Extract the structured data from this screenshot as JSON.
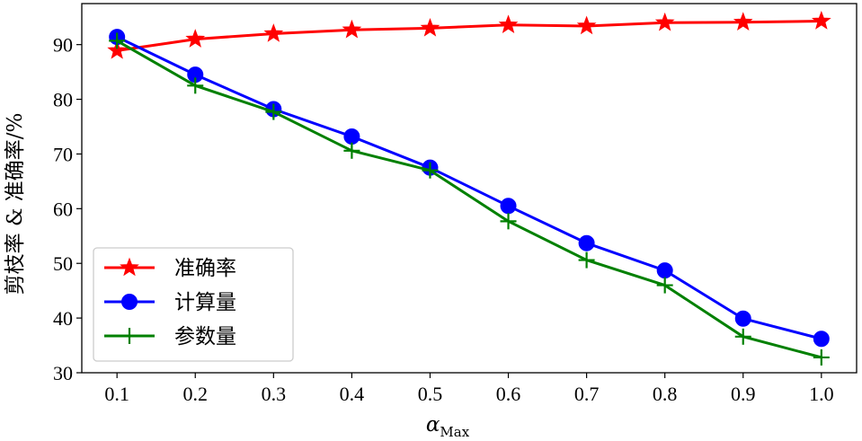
{
  "chart_data": {
    "type": "line",
    "x": [
      0.1,
      0.2,
      0.3,
      0.4,
      0.5,
      0.6,
      0.7,
      0.8,
      0.9,
      1.0
    ],
    "x_tick_labels": [
      "0.1",
      "0.2",
      "0.3",
      "0.4",
      "0.5",
      "0.6",
      "0.7",
      "0.8",
      "0.9",
      "1.0"
    ],
    "y_ticks": [
      30,
      40,
      50,
      60,
      70,
      80,
      90
    ],
    "xlim": [
      0.055,
      1.045
    ],
    "ylim": [
      30,
      97.5
    ],
    "xlabel": {
      "symbol": "α",
      "subscript": "Max"
    },
    "ylabel": "剪枝率 & 准确率/%",
    "grid": false,
    "legend_position": "lower-left",
    "series": [
      {
        "name": "准确率",
        "color": "#ff0000",
        "marker": "star",
        "values": [
          88.9,
          91.0,
          92.0,
          92.7,
          93.0,
          93.6,
          93.4,
          94.0,
          94.1,
          94.3
        ]
      },
      {
        "name": "计算量",
        "color": "#0000ff",
        "marker": "circle",
        "values": [
          91.4,
          84.5,
          78.2,
          73.2,
          67.5,
          60.5,
          53.7,
          48.7,
          39.9,
          36.2
        ]
      },
      {
        "name": "参数量",
        "color": "#008000",
        "marker": "plus",
        "values": [
          90.7,
          82.5,
          77.7,
          70.6,
          67.0,
          57.7,
          50.6,
          46.0,
          36.6,
          32.8
        ]
      }
    ]
  }
}
